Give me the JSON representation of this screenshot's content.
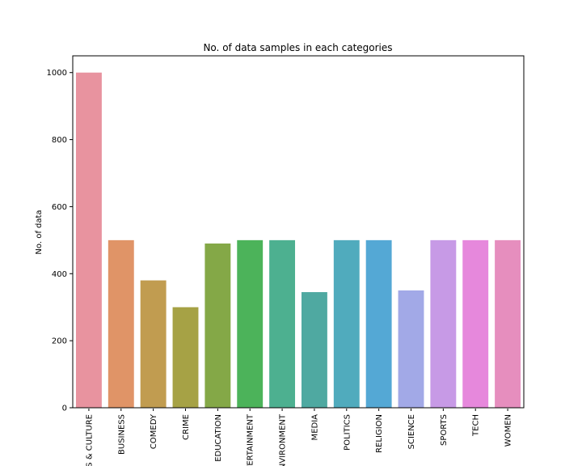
{
  "chart_data": {
    "type": "bar",
    "title": "No. of data samples in each categories",
    "xlabel": "",
    "ylabel": "No. of data",
    "ylim": [
      0,
      1050
    ],
    "yticks": [
      0,
      200,
      400,
      600,
      800,
      1000
    ],
    "grid": false,
    "categories": [
      "ARTS & CULTURE",
      "BUSINESS",
      "COMEDY",
      "CRIME",
      "EDUCATION",
      "ENTERTAINMENT",
      "ENVIRONMENT",
      "MEDIA",
      "POLITICS",
      "RELIGION",
      "SCIENCE",
      "SPORTS",
      "TECH",
      "WOMEN"
    ],
    "values": [
      1000,
      500,
      380,
      300,
      490,
      500,
      500,
      345,
      500,
      500,
      350,
      500,
      500,
      500
    ],
    "colors": [
      "#e8939f",
      "#e09467",
      "#c19c50",
      "#a6a245",
      "#84a847",
      "#4cb35a",
      "#4db090",
      "#4fa9a1",
      "#50abbd",
      "#54a8d5",
      "#a2a9e7",
      "#c79ae6",
      "#e688dc",
      "#e68ebe"
    ]
  }
}
